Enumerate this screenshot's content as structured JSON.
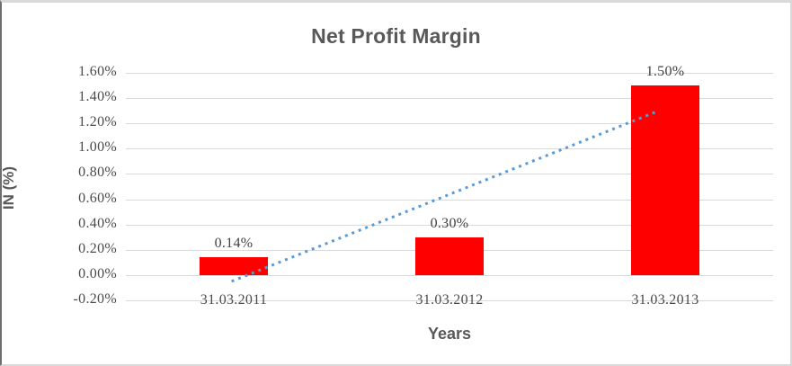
{
  "chart_data": {
    "type": "bar",
    "title": "Net Profit Margin",
    "xlabel": "Years",
    "ylabel": "IN (%)",
    "categories": [
      "31.03.2011",
      "31.03.2012",
      "31.03.2013"
    ],
    "values": [
      0.14,
      0.3,
      1.5
    ],
    "data_labels": [
      "0.14%",
      "0.30%",
      "1.50%"
    ],
    "unit": "%",
    "ylim": [
      -0.2,
      1.6
    ],
    "ytick_step": 0.2,
    "ytick_labels": [
      "1.60%",
      "1.40%",
      "1.20%",
      "1.00%",
      "0.80%",
      "0.60%",
      "0.40%",
      "0.20%",
      "0.00%",
      "-0.20%"
    ],
    "grid": true,
    "legend": "none",
    "trendline": {
      "style": "dotted",
      "x0_slot": 0.49,
      "y0_value": -0.05,
      "x1_slot": 2.47,
      "y1_value": 1.3
    }
  },
  "colors": {
    "bar": "#FF0000",
    "trendline": "#5B9BD5",
    "gridline": "#D9D9D9",
    "title_text": "#595959",
    "axis_title_text": "#595959",
    "tick_text": "#4A4A4A",
    "data_label_text": "#404040"
  }
}
